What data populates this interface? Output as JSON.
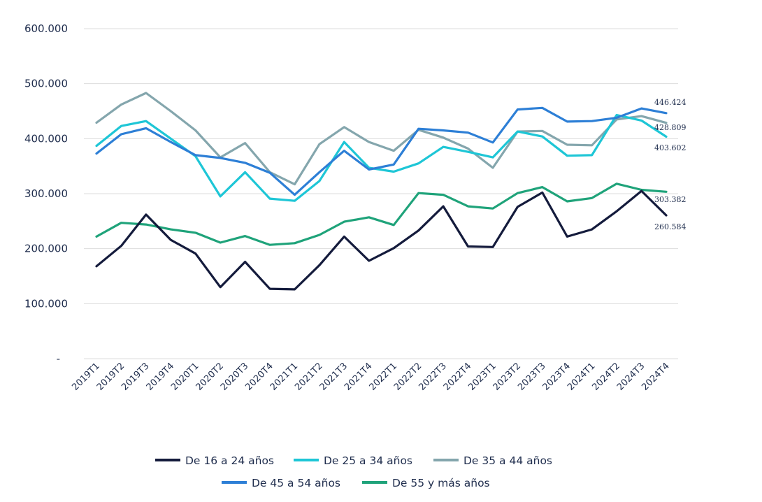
{
  "chart_data": {
    "type": "line",
    "title": "",
    "xlabel": "",
    "ylabel": "",
    "ylim": [
      0,
      600000
    ],
    "y_ticks": [
      {
        "value": 0,
        "label": "-"
      },
      {
        "value": 100000,
        "label": "100.000"
      },
      {
        "value": 200000,
        "label": "200.000"
      },
      {
        "value": 300000,
        "label": "300.000"
      },
      {
        "value": 400000,
        "label": "400.000"
      },
      {
        "value": 500000,
        "label": "500.000"
      },
      {
        "value": 600000,
        "label": "600.000"
      }
    ],
    "grid": true,
    "legend_position": "bottom",
    "categories": [
      "2019T1",
      "2019T2",
      "2019T3",
      "2019T4",
      "2020T1",
      "2020T2",
      "2020T3",
      "2020T4",
      "2021T1",
      "2021T2",
      "2021T3",
      "2021T4",
      "2022T1",
      "2022T2",
      "2022T3",
      "2022T4",
      "2023T1",
      "2023T2",
      "2023T3",
      "2023T4",
      "2024T1",
      "2024T2",
      "2024T3",
      "2024T4"
    ],
    "series": [
      {
        "name": "De 16 a 24 años",
        "color": "#141b3c",
        "values": [
          168000,
          205000,
          262000,
          216000,
          191000,
          130000,
          176000,
          127000,
          126000,
          170000,
          222000,
          178000,
          201000,
          233000,
          277000,
          204000,
          203000,
          276000,
          302000,
          222000,
          235000,
          268000,
          305000,
          260584
        ],
        "end_label": "260.584"
      },
      {
        "name": "De 25 a 34 años",
        "color": "#1ec6d6",
        "values": [
          387000,
          423000,
          432000,
          400000,
          368000,
          295000,
          339000,
          291000,
          287000,
          323000,
          394000,
          347000,
          340000,
          355000,
          385000,
          376000,
          366000,
          413000,
          404000,
          369000,
          370000,
          443000,
          433000,
          403602
        ],
        "end_label": "403.602"
      },
      {
        "name": "De 35 a 44 años",
        "color": "#84a6ad",
        "values": [
          429000,
          462000,
          483000,
          450000,
          415000,
          366000,
          392000,
          339000,
          317000,
          390000,
          421000,
          394000,
          378000,
          416000,
          402000,
          382000,
          347000,
          413000,
          414000,
          389000,
          388000,
          435000,
          441000,
          428809
        ],
        "end_label": "428.809"
      },
      {
        "name": "De 45 a 54 años",
        "color": "#2d7fd6",
        "values": [
          373000,
          408000,
          419000,
          394000,
          370000,
          365000,
          356000,
          338000,
          298000,
          339000,
          378000,
          344000,
          353000,
          418000,
          415000,
          411000,
          393000,
          453000,
          456000,
          431000,
          432000,
          438000,
          455000,
          446424
        ],
        "end_label": "446.424"
      },
      {
        "name": "De 55 y más años",
        "color": "#1fa37a",
        "values": [
          222000,
          247000,
          244000,
          235000,
          229000,
          211000,
          223000,
          207000,
          210000,
          225000,
          249000,
          257000,
          243000,
          301000,
          298000,
          277000,
          273000,
          301000,
          312000,
          286000,
          292000,
          318000,
          307000,
          303382
        ],
        "end_label": "303.382"
      }
    ]
  }
}
